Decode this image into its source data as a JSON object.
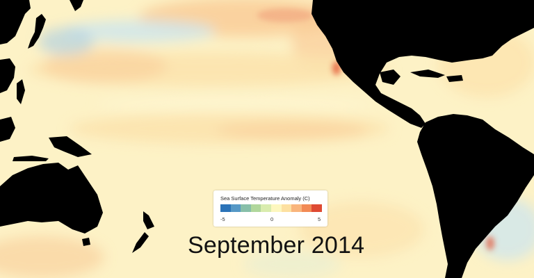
{
  "map": {
    "date_label": "September 2014",
    "legend": {
      "title": "Sea Surface Temperature Anomaly (C)",
      "min_label": "-5",
      "mid_label": "0",
      "max_label": "5",
      "colors": [
        "#2b73b8",
        "#5598c6",
        "#87bfa9",
        "#b0d79c",
        "#d9ecae",
        "#fdf7bf",
        "#fde0a1",
        "#f9b57c",
        "#f28a55",
        "#de4a33"
      ]
    },
    "palette": {
      "ocean_base": "#fdf2c6",
      "land": "#000000",
      "warm_light": "#fce3ae",
      "warm_mid": "#f9cc98",
      "warm_strong": "#f0a07a",
      "cool_light": "#cfe6ec",
      "cool_mid": "#a9cde4",
      "hot": "#e35a3a"
    }
  }
}
